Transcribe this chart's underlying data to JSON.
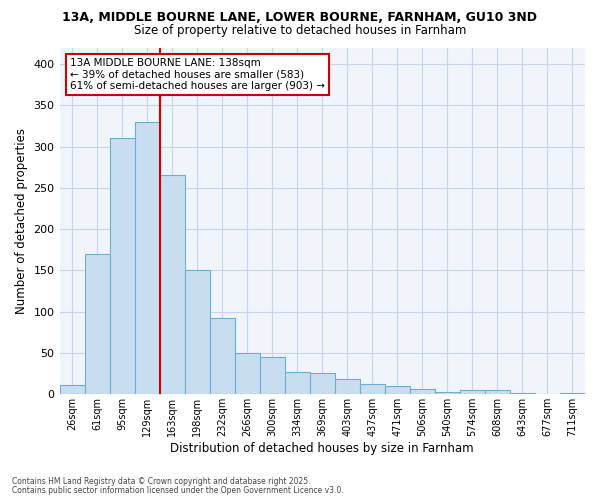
{
  "title_line1": "13A, MIDDLE BOURNE LANE, LOWER BOURNE, FARNHAM, GU10 3ND",
  "title_line2": "Size of property relative to detached houses in Farnham",
  "xlabel": "Distribution of detached houses by size in Farnham",
  "ylabel": "Number of detached properties",
  "categories": [
    "26sqm",
    "61sqm",
    "95sqm",
    "129sqm",
    "163sqm",
    "198sqm",
    "232sqm",
    "266sqm",
    "300sqm",
    "334sqm",
    "369sqm",
    "403sqm",
    "437sqm",
    "471sqm",
    "506sqm",
    "540sqm",
    "574sqm",
    "608sqm",
    "643sqm",
    "677sqm",
    "711sqm"
  ],
  "values": [
    11,
    170,
    311,
    330,
    265,
    151,
    93,
    50,
    45,
    27,
    26,
    19,
    12,
    10,
    7,
    3,
    5,
    5,
    1,
    0,
    2
  ],
  "bar_color": "#c8ddf0",
  "bar_edge_color": "#6baed6",
  "vline_color": "#cc0000",
  "vline_x": 3.5,
  "annotation_text": "13A MIDDLE BOURNE LANE: 138sqm\n← 39% of detached houses are smaller (583)\n61% of semi-detached houses are larger (903) →",
  "annotation_box_color": "#ffffff",
  "annotation_box_edge_color": "#cc0000",
  "footer_line1": "Contains HM Land Registry data © Crown copyright and database right 2025.",
  "footer_line2": "Contains public sector information licensed under the Open Government Licence v3.0.",
  "bg_color": "#ffffff",
  "plot_bg_color": "#f0f4fb",
  "grid_color": "#c8d4e8",
  "ylim": [
    0,
    420
  ],
  "yticks": [
    0,
    50,
    100,
    150,
    200,
    250,
    300,
    350,
    400
  ]
}
